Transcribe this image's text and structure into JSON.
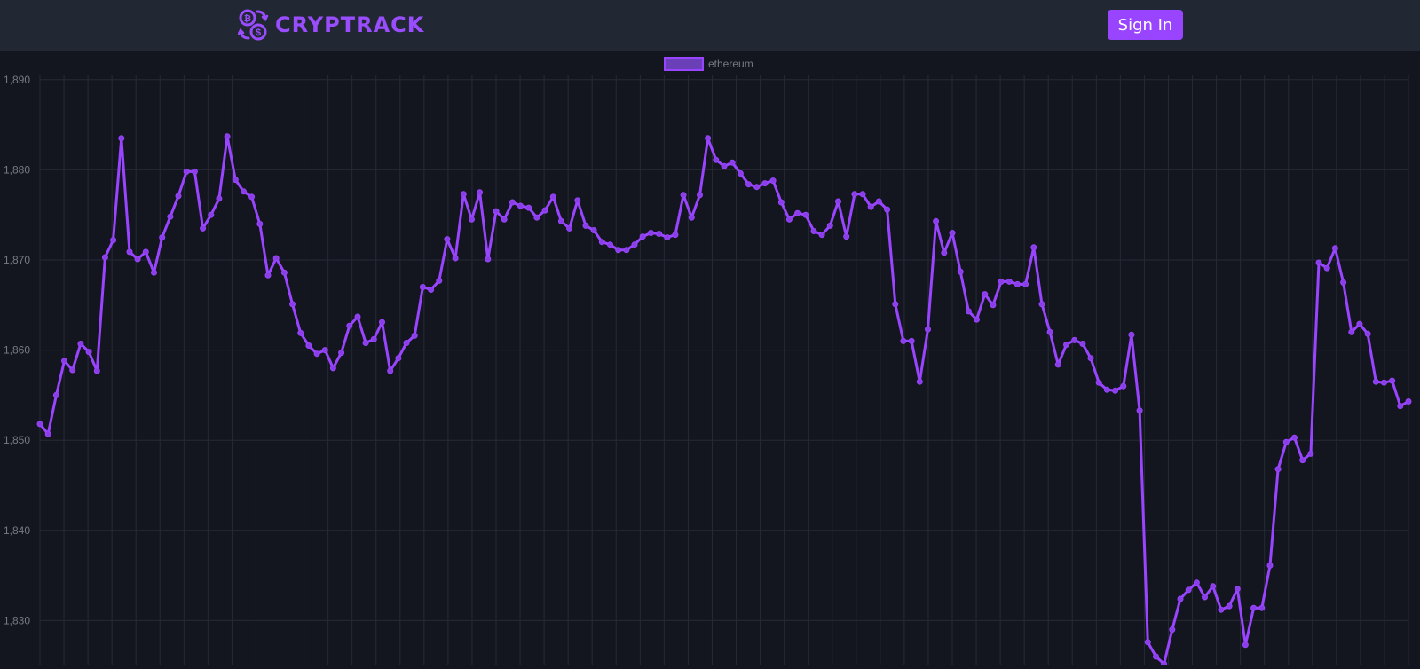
{
  "header": {
    "brand": "CRYPTRACK",
    "logo_icon": "coins-exchange-icon",
    "signin_label": "Sign In"
  },
  "colors": {
    "page_bg": "#14161f",
    "header_bg": "#222833",
    "accent": "#9945ff",
    "grid": "#262a35",
    "tick_text": "#777a85"
  },
  "chart_data": {
    "type": "line",
    "title": "",
    "xlabel": "",
    "ylabel": "",
    "legend_position": "top",
    "grid": true,
    "ylim": [
      1825.2,
      1891.3
    ],
    "yticks": [
      1830,
      1840,
      1850,
      1860,
      1870,
      1880,
      1890
    ],
    "ytick_labels": [
      "1,830",
      "1,840",
      "1,850",
      "1,860",
      "1,870",
      "1,880",
      "1,890"
    ],
    "series": [
      {
        "name": "ethereum",
        "color": "#9945ff",
        "values": [
          1851.8,
          1850.7,
          1855.0,
          1858.8,
          1857.8,
          1860.7,
          1859.8,
          1857.7,
          1870.3,
          1872.2,
          1883.5,
          1870.9,
          1870.1,
          1870.9,
          1868.6,
          1872.5,
          1874.8,
          1877.1,
          1879.8,
          1879.8,
          1873.5,
          1875.0,
          1876.8,
          1883.7,
          1878.9,
          1877.6,
          1877.0,
          1874.0,
          1868.3,
          1870.2,
          1868.6,
          1865.1,
          1861.9,
          1860.5,
          1859.6,
          1860.0,
          1858.0,
          1859.7,
          1862.7,
          1863.7,
          1860.8,
          1861.2,
          1863.1,
          1857.7,
          1859.1,
          1860.8,
          1861.6,
          1867.0,
          1866.7,
          1867.7,
          1872.3,
          1870.2,
          1877.3,
          1874.5,
          1877.5,
          1870.1,
          1875.4,
          1874.5,
          1876.4,
          1876.0,
          1875.8,
          1874.7,
          1875.5,
          1877.0,
          1874.3,
          1873.5,
          1876.6,
          1873.8,
          1873.3,
          1872.0,
          1871.7,
          1871.1,
          1871.1,
          1871.7,
          1872.6,
          1873.0,
          1872.9,
          1872.5,
          1872.8,
          1877.2,
          1874.7,
          1877.2,
          1883.5,
          1881.1,
          1880.4,
          1880.8,
          1879.6,
          1878.4,
          1878.1,
          1878.5,
          1878.8,
          1876.4,
          1874.5,
          1875.2,
          1875.0,
          1873.2,
          1872.8,
          1873.8,
          1876.5,
          1872.6,
          1877.3,
          1877.3,
          1875.9,
          1876.5,
          1875.6,
          1865.1,
          1861.0,
          1861.0,
          1856.5,
          1862.3,
          1874.3,
          1870.8,
          1873.0,
          1868.7,
          1864.3,
          1863.4,
          1866.2,
          1865.0,
          1867.6,
          1867.6,
          1867.3,
          1867.3,
          1871.4,
          1865.1,
          1862.0,
          1858.4,
          1860.6,
          1861.1,
          1860.7,
          1859.1,
          1856.4,
          1855.6,
          1855.5,
          1856.0,
          1861.7,
          1853.3,
          1827.6,
          1826.0,
          1825.2,
          1829.0,
          1832.4,
          1833.4,
          1834.2,
          1832.6,
          1833.8,
          1831.2,
          1831.6,
          1833.5,
          1827.3,
          1831.4,
          1831.4,
          1836.1,
          1846.8,
          1849.8,
          1850.3,
          1847.8,
          1848.5,
          1869.7,
          1869.1,
          1871.3,
          1867.5,
          1862.0,
          1862.9,
          1861.8,
          1856.5,
          1856.4,
          1856.6,
          1853.8,
          1854.3
        ]
      }
    ]
  }
}
